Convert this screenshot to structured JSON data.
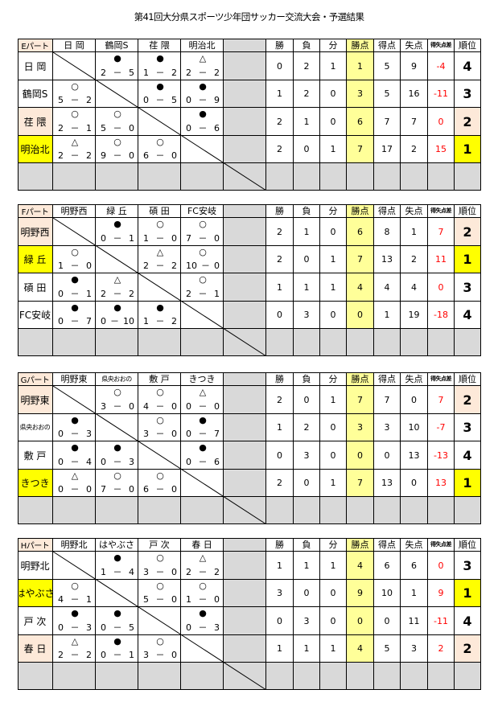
{
  "title": "第41回大分県スポーツ少年団サッカー交流大会・予選結果",
  "headers": [
    "勝",
    "負",
    "分",
    "勝点",
    "得点",
    "失点",
    "得失点差",
    "順位"
  ],
  "colors": {
    "yellow": "#ffff00",
    "pink": "#fde9d9",
    "points_column": "#ffff99",
    "gray": "#d9d9d9",
    "negative_and_diff": "#ff0000"
  },
  "marks": {
    "win": "○",
    "loss": "●",
    "draw": "△"
  },
  "parts": [
    {
      "label": "Eパート",
      "teams": [
        "日 岡",
        "鶴岡S",
        "荏 隈",
        "明治北"
      ],
      "rows": [
        {
          "name": "日 岡",
          "results": [
            null,
            {
              "mark": "●",
              "home": "2",
              "away": "5"
            },
            {
              "mark": "●",
              "home": "1",
              "away": "2"
            },
            {
              "mark": "△",
              "home": "2",
              "away": "2"
            }
          ],
          "stats": [
            "0",
            "2",
            "1",
            "1",
            "5",
            "9",
            "-4",
            "4"
          ]
        },
        {
          "name": "鶴岡S",
          "results": [
            {
              "mark": "○",
              "home": "5",
              "away": "2"
            },
            null,
            {
              "mark": "●",
              "home": "0",
              "away": "5"
            },
            {
              "mark": "●",
              "home": "0",
              "away": "9"
            }
          ],
          "stats": [
            "1",
            "2",
            "0",
            "3",
            "5",
            "16",
            "-11",
            "3"
          ]
        },
        {
          "name": "荏 隈",
          "results": [
            {
              "mark": "○",
              "home": "2",
              "away": "1"
            },
            {
              "mark": "○",
              "home": "5",
              "away": "0"
            },
            null,
            {
              "mark": "●",
              "home": "0",
              "away": "6"
            }
          ],
          "stats": [
            "2",
            "1",
            "0",
            "6",
            "7",
            "7",
            "0",
            "2"
          ]
        },
        {
          "name": "明治北",
          "results": [
            {
              "mark": "△",
              "home": "2",
              "away": "2"
            },
            {
              "mark": "○",
              "home": "9",
              "away": "0"
            },
            {
              "mark": "○",
              "home": "6",
              "away": "0"
            },
            null
          ],
          "stats": [
            "2",
            "0",
            "1",
            "7",
            "17",
            "2",
            "15",
            "1"
          ]
        }
      ]
    },
    {
      "label": "Fパート",
      "teams": [
        "明野西",
        "緑 丘",
        "碩 田",
        "FC安岐"
      ],
      "rows": [
        {
          "name": "明野西",
          "results": [
            null,
            {
              "mark": "●",
              "home": "0",
              "away": "1"
            },
            {
              "mark": "○",
              "home": "1",
              "away": "0"
            },
            {
              "mark": "○",
              "home": "7",
              "away": "0"
            }
          ],
          "stats": [
            "2",
            "1",
            "0",
            "6",
            "8",
            "1",
            "7",
            "2"
          ]
        },
        {
          "name": "緑 丘",
          "results": [
            {
              "mark": "○",
              "home": "1",
              "away": "0"
            },
            null,
            {
              "mark": "△",
              "home": "2",
              "away": "2"
            },
            {
              "mark": "○",
              "home": "10",
              "away": "0"
            }
          ],
          "stats": [
            "2",
            "0",
            "1",
            "7",
            "13",
            "2",
            "11",
            "1"
          ]
        },
        {
          "name": "碩 田",
          "results": [
            {
              "mark": "●",
              "home": "0",
              "away": "1"
            },
            {
              "mark": "△",
              "home": "2",
              "away": "2"
            },
            null,
            {
              "mark": "○",
              "home": "2",
              "away": "1"
            }
          ],
          "stats": [
            "1",
            "1",
            "1",
            "4",
            "4",
            "4",
            "0",
            "3"
          ]
        },
        {
          "name": "FC安岐",
          "results": [
            {
              "mark": "●",
              "home": "0",
              "away": "7"
            },
            {
              "mark": "●",
              "home": "0",
              "away": "10"
            },
            {
              "mark": "●",
              "home": "1",
              "away": "2"
            },
            null
          ],
          "stats": [
            "0",
            "3",
            "0",
            "0",
            "1",
            "19",
            "-18",
            "4"
          ]
        }
      ]
    },
    {
      "label": "Gパート",
      "teams": [
        "明野東",
        "県央おおの",
        "敷 戸",
        "きつき"
      ],
      "rows": [
        {
          "name": "明野東",
          "results": [
            null,
            {
              "mark": "○",
              "home": "3",
              "away": "0"
            },
            {
              "mark": "○",
              "home": "4",
              "away": "0"
            },
            {
              "mark": "△",
              "home": "0",
              "away": "0"
            }
          ],
          "stats": [
            "2",
            "0",
            "1",
            "7",
            "7",
            "0",
            "7",
            "2"
          ]
        },
        {
          "name": "県央おおの",
          "results": [
            {
              "mark": "●",
              "home": "0",
              "away": "3"
            },
            null,
            {
              "mark": "○",
              "home": "3",
              "away": "0"
            },
            {
              "mark": "●",
              "home": "0",
              "away": "7"
            }
          ],
          "stats": [
            "1",
            "2",
            "0",
            "3",
            "3",
            "10",
            "-7",
            "3"
          ]
        },
        {
          "name": "敷 戸",
          "results": [
            {
              "mark": "●",
              "home": "0",
              "away": "4"
            },
            {
              "mark": "●",
              "home": "0",
              "away": "3"
            },
            null,
            {
              "mark": "●",
              "home": "0",
              "away": "6"
            }
          ],
          "stats": [
            "0",
            "3",
            "0",
            "0",
            "0",
            "13",
            "-13",
            "4"
          ]
        },
        {
          "name": "きつき",
          "results": [
            {
              "mark": "△",
              "home": "0",
              "away": "0"
            },
            {
              "mark": "○",
              "home": "7",
              "away": "0"
            },
            {
              "mark": "○",
              "home": "6",
              "away": "0"
            },
            null
          ],
          "stats": [
            "2",
            "0",
            "1",
            "7",
            "13",
            "0",
            "13",
            "1"
          ]
        }
      ]
    },
    {
      "label": "Hパート",
      "teams": [
        "明野北",
        "はやぶさ",
        "戸 次",
        "春 日"
      ],
      "rows": [
        {
          "name": "明野北",
          "results": [
            null,
            {
              "mark": "●",
              "home": "1",
              "away": "4"
            },
            {
              "mark": "○",
              "home": "3",
              "away": "0"
            },
            {
              "mark": "△",
              "home": "2",
              "away": "2"
            }
          ],
          "stats": [
            "1",
            "1",
            "1",
            "4",
            "6",
            "6",
            "0",
            "3"
          ]
        },
        {
          "name": "はやぶさ",
          "results": [
            {
              "mark": "○",
              "home": "4",
              "away": "1"
            },
            null,
            {
              "mark": "○",
              "home": "5",
              "away": "0"
            },
            {
              "mark": "○",
              "home": "1",
              "away": "0"
            }
          ],
          "stats": [
            "3",
            "0",
            "0",
            "9",
            "10",
            "1",
            "9",
            "1"
          ]
        },
        {
          "name": "戸 次",
          "results": [
            {
              "mark": "●",
              "home": "0",
              "away": "3"
            },
            {
              "mark": "●",
              "home": "0",
              "away": "5"
            },
            null,
            {
              "mark": "●",
              "home": "0",
              "away": "3"
            }
          ],
          "stats": [
            "0",
            "3",
            "0",
            "0",
            "0",
            "11",
            "-11",
            "4"
          ]
        },
        {
          "name": "春 日",
          "results": [
            {
              "mark": "△",
              "home": "2",
              "away": "2"
            },
            {
              "mark": "●",
              "home": "0",
              "away": "1"
            },
            {
              "mark": "○",
              "home": "3",
              "away": "0"
            },
            null
          ],
          "stats": [
            "1",
            "1",
            "1",
            "4",
            "5",
            "3",
            "2",
            "2"
          ]
        }
      ]
    }
  ]
}
